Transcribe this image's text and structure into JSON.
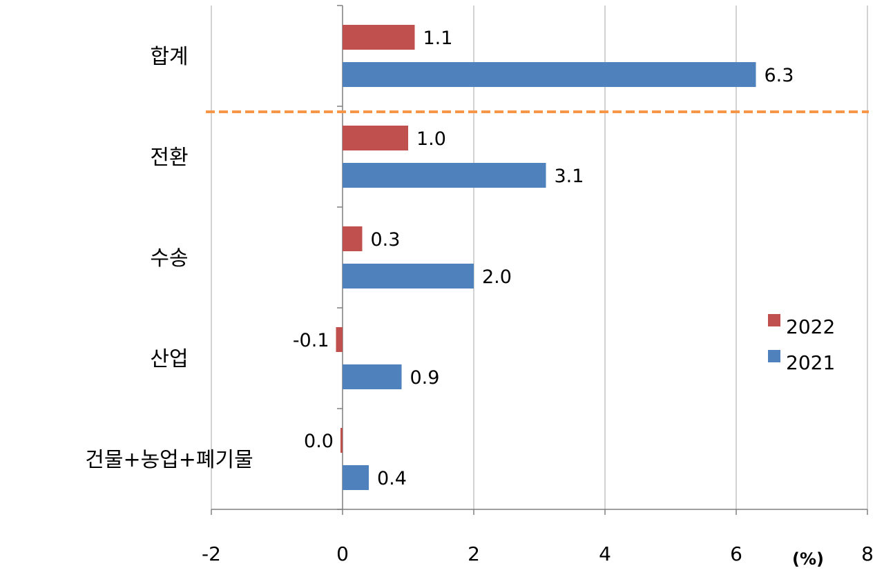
{
  "chart_data": {
    "type": "bar",
    "orientation": "horizontal",
    "categories": [
      "합계",
      "전환",
      "수송",
      "산업",
      "건물+농업+폐기물"
    ],
    "series": [
      {
        "name": "2022",
        "color": "#c0504d",
        "values": [
          1.1,
          1.0,
          0.3,
          -0.1,
          0.0
        ],
        "labels": [
          "1.1",
          "1.0",
          "0.3",
          "-0.1",
          "0.0"
        ]
      },
      {
        "name": "2021",
        "color": "#4f81bd",
        "values": [
          6.3,
          3.1,
          2.0,
          0.9,
          0.4
        ],
        "labels": [
          "6.3",
          "3.1",
          "2.0",
          "0.9",
          "0.4"
        ]
      }
    ],
    "xlim": [
      -2,
      8
    ],
    "xticks": [
      -2,
      0,
      2,
      4,
      6,
      8
    ],
    "xtick_labels": [
      "-2",
      "0",
      "2",
      "4",
      "6",
      "8"
    ],
    "unit_label": "(%)",
    "grid": "vertical",
    "legend_position": "right",
    "separator": {
      "after_category": "합계",
      "color": "#f79646",
      "style": "dashed"
    }
  }
}
